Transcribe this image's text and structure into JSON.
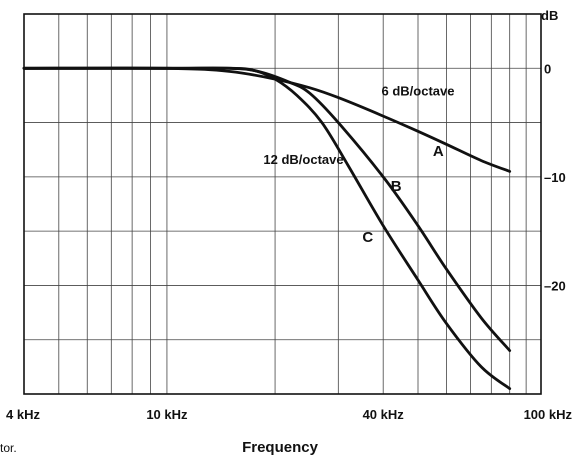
{
  "caption_fragment": "tor.",
  "chart_data": {
    "type": "line",
    "xlabel": "Frequency",
    "x_scale": "log",
    "xlim_hz": [
      4000,
      110000
    ],
    "ylim_db": [
      -30,
      5
    ],
    "grid": true,
    "x_ticks": [
      {
        "value_hz": 4000,
        "label": "4 kHz"
      },
      {
        "value_hz": 10000,
        "label": "10 kHz"
      },
      {
        "value_hz": 40000,
        "label": "40 kHz"
      },
      {
        "value_hz": 100000,
        "label": "100 kHz"
      }
    ],
    "y_unit_label": "dB",
    "y_ticks": [
      {
        "value": 0,
        "label": "0"
      },
      {
        "value": -10,
        "label": "–10"
      },
      {
        "value": -20,
        "label": "–20"
      }
    ],
    "annotations": [
      {
        "text": "6 dB/octave",
        "x_hz": 50000,
        "y": -2.5
      },
      {
        "text": "12 dB/octave",
        "x_hz": 24000,
        "y": -8.8
      }
    ],
    "series": [
      {
        "name": "A",
        "label_at": {
          "x_hz": 55000,
          "y": -8.1
        },
        "points": [
          [
            4000,
            0
          ],
          [
            10000,
            0
          ],
          [
            15000,
            -0.3
          ],
          [
            20000,
            -1.0
          ],
          [
            25000,
            -1.8
          ],
          [
            30000,
            -2.7
          ],
          [
            40000,
            -4.4
          ],
          [
            50000,
            -5.8
          ],
          [
            60000,
            -7.0
          ],
          [
            75000,
            -8.5
          ],
          [
            90000,
            -9.5
          ]
        ]
      },
      {
        "name": "B",
        "label_at": {
          "x_hz": 42000,
          "y": -11.3
        },
        "points": [
          [
            4000,
            0
          ],
          [
            10000,
            0
          ],
          [
            15000,
            0
          ],
          [
            18000,
            -0.3
          ],
          [
            22000,
            -1.3
          ],
          [
            25000,
            -2.3
          ],
          [
            30000,
            -5.0
          ],
          [
            40000,
            -10.0
          ],
          [
            50000,
            -14.5
          ],
          [
            60000,
            -18.5
          ],
          [
            75000,
            -23.0
          ],
          [
            90000,
            -26.0
          ]
        ]
      },
      {
        "name": "C",
        "label_at": {
          "x_hz": 35000,
          "y": -16.0
        },
        "points": [
          [
            4000,
            0
          ],
          [
            10000,
            0
          ],
          [
            15000,
            0
          ],
          [
            17500,
            -0.2
          ],
          [
            20000,
            -1.0
          ],
          [
            23000,
            -2.5
          ],
          [
            27000,
            -5.0
          ],
          [
            32000,
            -9.0
          ],
          [
            40000,
            -14.5
          ],
          [
            50000,
            -19.5
          ],
          [
            60000,
            -23.5
          ],
          [
            75000,
            -27.5
          ],
          [
            90000,
            -29.5
          ]
        ]
      }
    ]
  }
}
